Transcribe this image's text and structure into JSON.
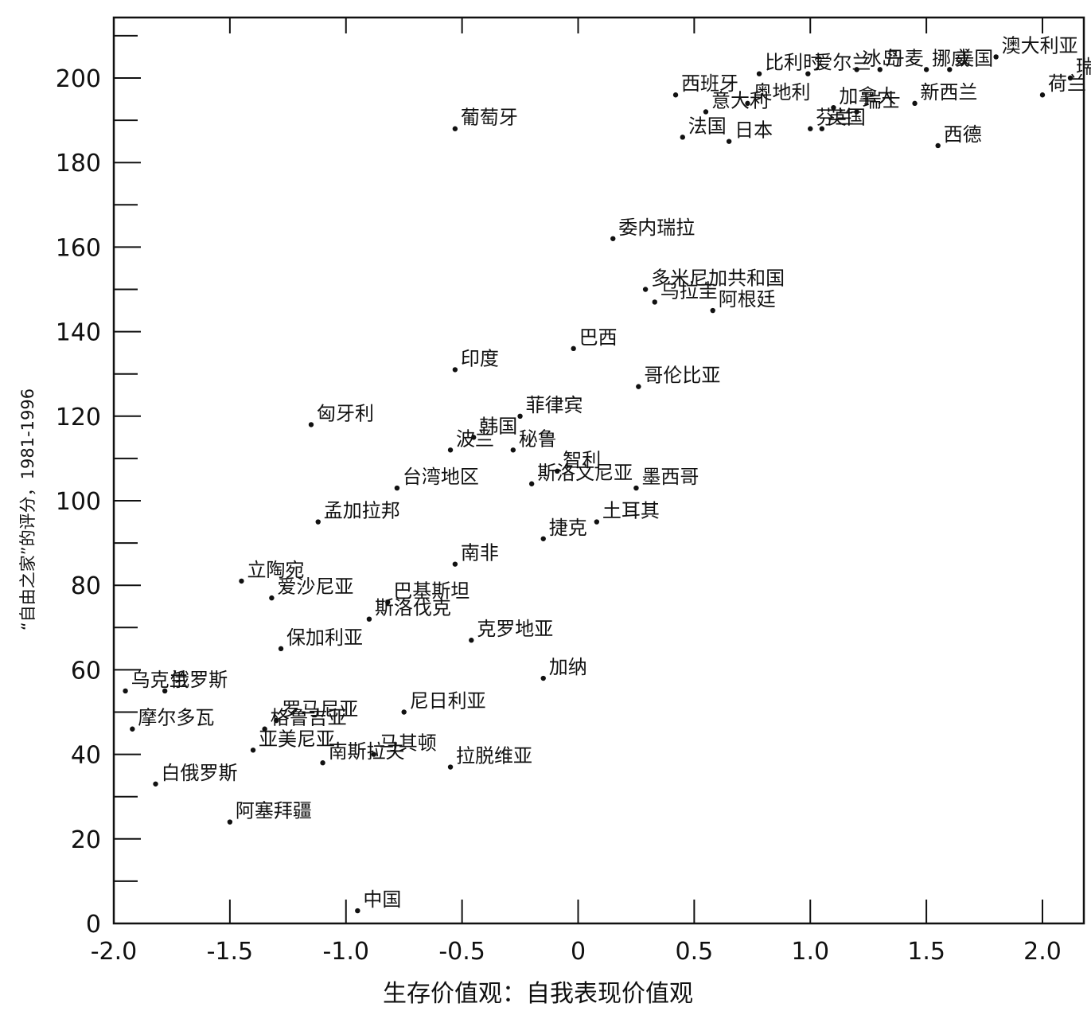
{
  "chart_data": {
    "type": "scatter",
    "xlabel": "生存价值观：自我表现价值观",
    "ylabel": "“自由之家”的评分，1981-1996",
    "xlim": [
      -2.0,
      2.2
    ],
    "ylim": [
      0,
      210
    ],
    "xticks": [
      -2.0,
      -1.5,
      -1.0,
      -0.5,
      0,
      0.5,
      1.0,
      1.5,
      2.0
    ],
    "xtick_labels": [
      "-2.0",
      "-1.5",
      "-1.0",
      "-0.5",
      "0",
      "0.5",
      "1.0",
      "1.5",
      "2.0"
    ],
    "yticks": [
      0,
      20,
      40,
      60,
      80,
      100,
      120,
      140,
      160,
      180,
      200
    ],
    "ytick_labels": [
      "0",
      "20",
      "40",
      "60",
      "80",
      "100",
      "120",
      "140",
      "160",
      "180",
      "200"
    ],
    "grid": false,
    "points": [
      {
        "label": "瑞典",
        "x": 2.12,
        "y": 200
      },
      {
        "label": "荷兰",
        "x": 2.0,
        "y": 196
      },
      {
        "label": "挪威",
        "x": 1.5,
        "y": 202
      },
      {
        "label": "美国",
        "x": 1.6,
        "y": 202
      },
      {
        "label": "芬兰",
        "x": 1.0,
        "y": 188
      },
      {
        "label": "冰岛",
        "x": 1.2,
        "y": 202
      },
      {
        "label": "丹麦",
        "x": 1.3,
        "y": 202
      },
      {
        "label": "加拿大",
        "x": 1.1,
        "y": 193
      },
      {
        "label": "澳大利亚",
        "x": 1.8,
        "y": 205
      },
      {
        "label": "新西兰",
        "x": 1.45,
        "y": 194
      },
      {
        "label": "瑞士",
        "x": 1.2,
        "y": 192
      },
      {
        "label": "英国",
        "x": 1.05,
        "y": 188
      },
      {
        "label": "西德",
        "x": 1.55,
        "y": 184
      },
      {
        "label": "比利时",
        "x": 0.78,
        "y": 201
      },
      {
        "label": "爱尔兰",
        "x": 0.99,
        "y": 201
      },
      {
        "label": "西班牙",
        "x": 0.42,
        "y": 196
      },
      {
        "label": "意大利",
        "x": 0.55,
        "y": 192
      },
      {
        "label": "奥地利",
        "x": 0.73,
        "y": 194
      },
      {
        "label": "法国",
        "x": 0.45,
        "y": 186
      },
      {
        "label": "日本",
        "x": 0.65,
        "y": 185
      },
      {
        "label": "葡萄牙",
        "x": -0.53,
        "y": 188
      },
      {
        "label": "委内瑞拉",
        "x": 0.15,
        "y": 162
      },
      {
        "label": "多米尼加共和国",
        "x": 0.29,
        "y": 150
      },
      {
        "label": "乌拉圭",
        "x": 0.33,
        "y": 147
      },
      {
        "label": "阿根廷",
        "x": 0.58,
        "y": 145
      },
      {
        "label": "巴西",
        "x": -0.02,
        "y": 136
      },
      {
        "label": "印度",
        "x": -0.53,
        "y": 131
      },
      {
        "label": "哥伦比亚",
        "x": 0.26,
        "y": 127
      },
      {
        "label": "韩国",
        "x": -0.45,
        "y": 115
      },
      {
        "label": "菲律宾",
        "x": -0.25,
        "y": 120
      },
      {
        "label": "匈牙利",
        "x": -1.15,
        "y": 118
      },
      {
        "label": "波兰",
        "x": -0.55,
        "y": 112
      },
      {
        "label": "秘鲁",
        "x": -0.28,
        "y": 112
      },
      {
        "label": "智利",
        "x": -0.09,
        "y": 107
      },
      {
        "label": "斯洛文尼亚",
        "x": -0.2,
        "y": 104
      },
      {
        "label": "台湾地区",
        "x": -0.78,
        "y": 103
      },
      {
        "label": "墨西哥",
        "x": 0.25,
        "y": 103
      },
      {
        "label": "孟加拉邦",
        "x": -1.12,
        "y": 95
      },
      {
        "label": "土耳其",
        "x": 0.08,
        "y": 95
      },
      {
        "label": "捷克",
        "x": -0.15,
        "y": 91
      },
      {
        "label": "南非",
        "x": -0.53,
        "y": 85
      },
      {
        "label": "立陶宛",
        "x": -1.45,
        "y": 81
      },
      {
        "label": "巴基斯坦",
        "x": -0.82,
        "y": 76
      },
      {
        "label": "爱沙尼亚",
        "x": -1.32,
        "y": 77
      },
      {
        "label": "斯洛伐克",
        "x": -0.9,
        "y": 72
      },
      {
        "label": "克罗地亚",
        "x": -0.46,
        "y": 67
      },
      {
        "label": "保加利亚",
        "x": -1.28,
        "y": 65
      },
      {
        "label": "加纳",
        "x": -0.15,
        "y": 58
      },
      {
        "label": "俄罗斯",
        "x": -1.78,
        "y": 55
      },
      {
        "label": "乌克兰",
        "x": -1.95,
        "y": 55
      },
      {
        "label": "罗马尼亚",
        "x": -1.3,
        "y": 48
      },
      {
        "label": "尼日利亚",
        "x": -0.75,
        "y": 50
      },
      {
        "label": "摩尔多瓦",
        "x": -1.92,
        "y": 46
      },
      {
        "label": "格鲁吉亚",
        "x": -1.35,
        "y": 46
      },
      {
        "label": "马其顿",
        "x": -0.88,
        "y": 40
      },
      {
        "label": "拉脱维亚",
        "x": -0.55,
        "y": 37
      },
      {
        "label": "亚美尼亚",
        "x": -1.4,
        "y": 41
      },
      {
        "label": "南斯拉夫",
        "x": -1.1,
        "y": 38
      },
      {
        "label": "白俄罗斯",
        "x": -1.82,
        "y": 33
      },
      {
        "label": "阿塞拜疆",
        "x": -1.5,
        "y": 24
      },
      {
        "label": "中国",
        "x": -0.95,
        "y": 3
      }
    ]
  }
}
